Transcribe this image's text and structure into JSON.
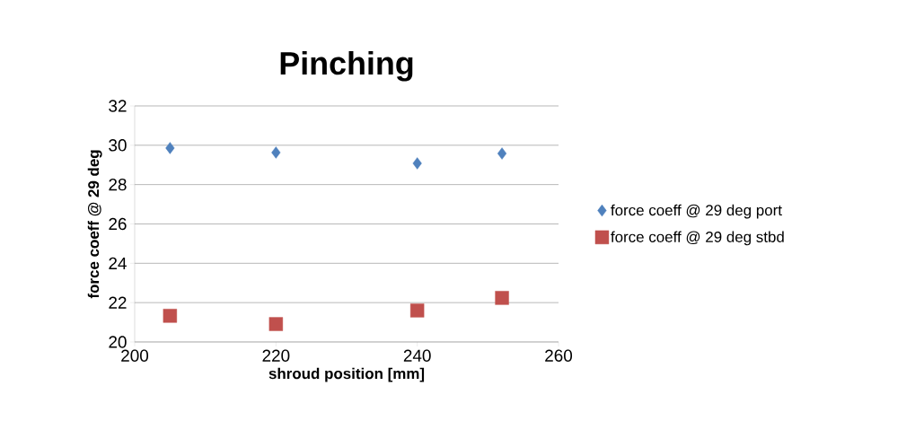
{
  "chart_data": {
    "type": "scatter",
    "title": "Pinching",
    "xlabel": "shroud position [mm]",
    "ylabel": "force coeff @ 29 deg",
    "xlim": [
      200,
      260
    ],
    "xticks": [
      200,
      220,
      240,
      260
    ],
    "ylim": [
      20,
      32
    ],
    "yticks": [
      20,
      22,
      24,
      26,
      28,
      30,
      32
    ],
    "grid": "y",
    "legend": "right",
    "series": [
      {
        "name": "force coeff @ 29 deg port",
        "color": "#4f81bd",
        "marker": "diamond",
        "x": [
          205,
          220,
          240,
          252
        ],
        "values": [
          29.86,
          29.63,
          29.08,
          29.58
        ]
      },
      {
        "name": "force coeff @ 29 deg stbd",
        "color": "#c0504d",
        "marker": "square",
        "x": [
          205,
          220,
          240,
          252
        ],
        "values": [
          21.33,
          20.91,
          21.6,
          22.24
        ]
      }
    ]
  }
}
